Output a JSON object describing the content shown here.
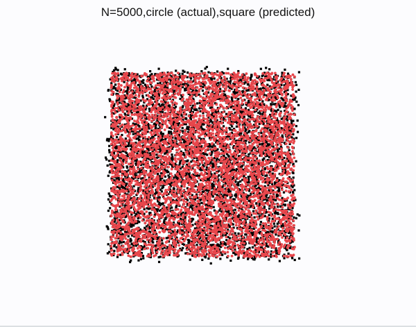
{
  "chart_data": {
    "type": "scatter",
    "title": "N=5000,circle (actual),square (predicted)",
    "n": 5000,
    "xlim": [
      0,
      1
    ],
    "ylim": [
      0,
      1
    ],
    "grid": false,
    "axes_visible": false,
    "series": [
      {
        "marker": "square",
        "color": "#000000"
      },
      {
        "marker": "circle",
        "color": "#e8474c"
      }
    ]
  }
}
